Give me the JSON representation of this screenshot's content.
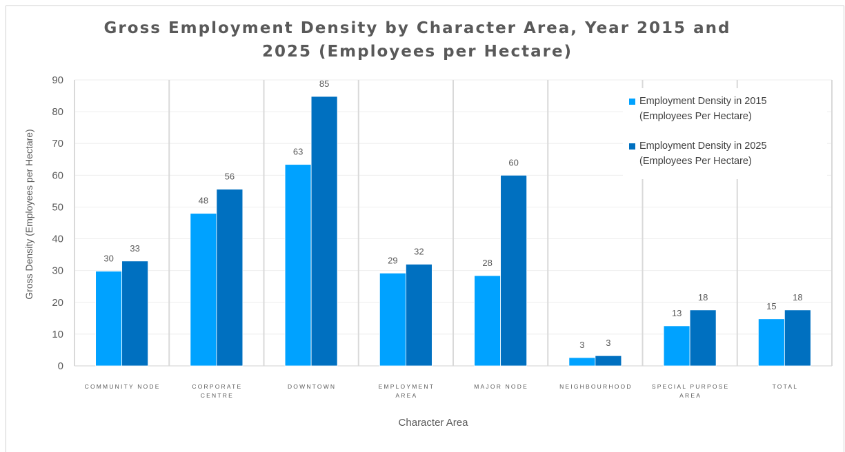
{
  "chart_data": {
    "type": "bar",
    "title_lines": [
      "Gross Employment Density by Character Area, Year 2015 and",
      "2025 (Employees per Hectare)"
    ],
    "xlabel": "Character Area",
    "ylabel": "Gross Density (Employees per Hectare)",
    "ylim": [
      0,
      90
    ],
    "yticks": [
      "0",
      "10",
      "20",
      "30",
      "40",
      "50",
      "60",
      "70",
      "80",
      "90"
    ],
    "categories": [
      [
        "COMMUNITY NODE"
      ],
      [
        "CORPORATE",
        "CENTRE"
      ],
      [
        "DOWNTOWN"
      ],
      [
        "EMPLOYMENT",
        "AREA"
      ],
      [
        "MAJOR NODE"
      ],
      [
        "NEIGHBOURHOOD"
      ],
      [
        "SPECIAL PURPOSE",
        "AREA"
      ],
      [
        "TOTAL"
      ]
    ],
    "series": [
      {
        "legend_lines": [
          "Employment Density in 2015",
          "(Employees Per Hectare)"
        ],
        "color": "#00a2ff",
        "values": [
          29.8,
          48.0,
          63.4,
          29.2,
          28.4,
          2.6,
          12.6,
          14.8
        ],
        "labels": [
          "30",
          "48",
          "63",
          "29",
          "28",
          "3",
          "13",
          "15"
        ]
      },
      {
        "legend_lines": [
          "Employment Density in 2025",
          "(Employees Per Hectare)"
        ],
        "color": "#0070c0",
        "values": [
          33.0,
          55.6,
          84.8,
          32.0,
          60.0,
          3.2,
          17.6,
          17.6
        ],
        "labels": [
          "33",
          "56",
          "85",
          "32",
          "60",
          "3",
          "18",
          "18"
        ]
      }
    ],
    "grid": true,
    "legend_position": "top-right"
  }
}
